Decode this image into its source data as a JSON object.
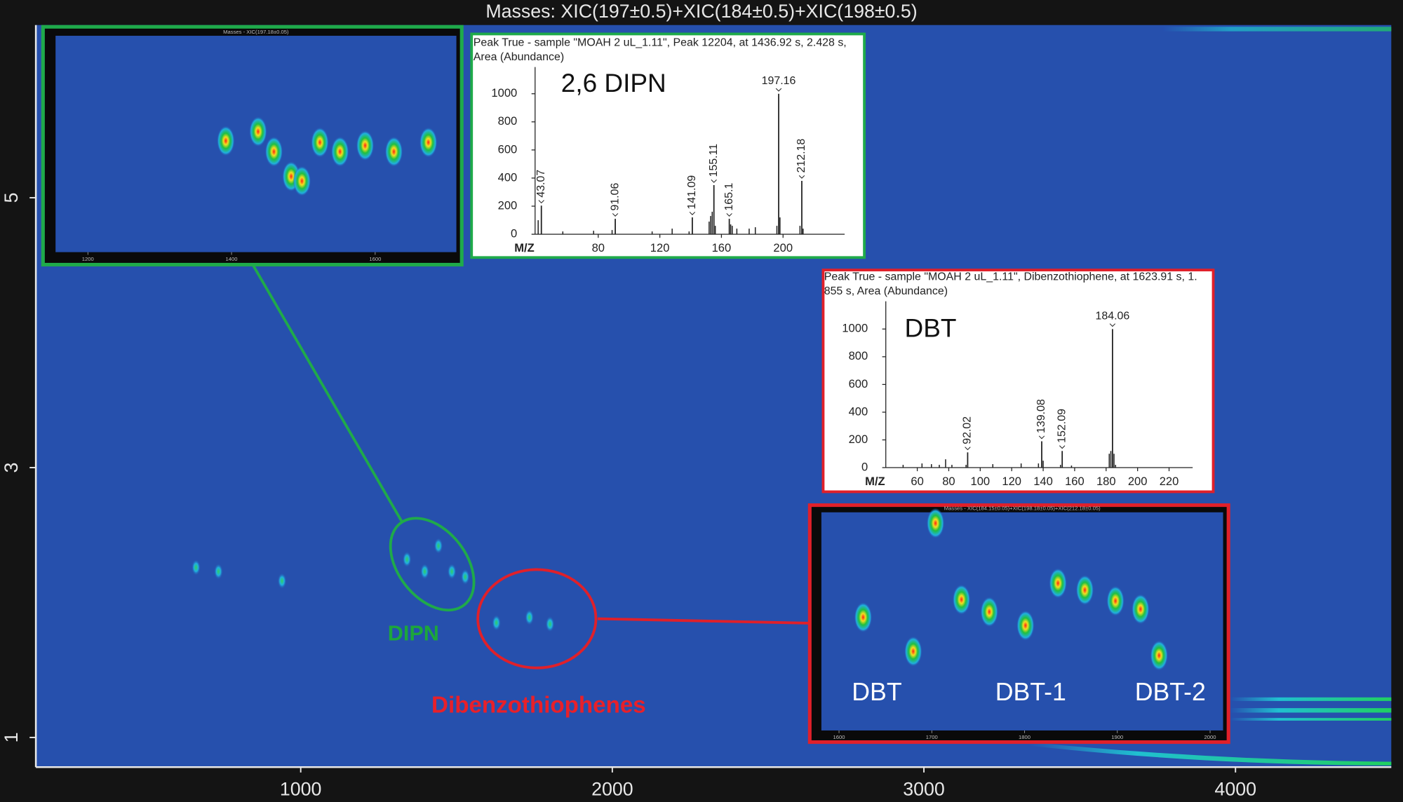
{
  "chart_data": [
    {
      "type": "contour",
      "title": "Masses:  XIC(197±0.5)+XIC(184±0.5)+XIC(198±0.5)",
      "xlim": [
        150,
        4500
      ],
      "xticks": [
        1000,
        2000,
        3000,
        4000
      ],
      "ylim": [
        0.78,
        6.28
      ],
      "yticks": [
        1,
        3,
        5
      ],
      "spots": {
        "x": [
          664,
          736,
          940,
          1341,
          1398,
          1442,
          1485,
          1528,
          1628,
          1734,
          1800
        ],
        "y": [
          2.26,
          2.23,
          2.16,
          2.32,
          2.23,
          2.42,
          2.23,
          2.19,
          1.85,
          1.89,
          1.84
        ]
      },
      "annotations": [
        {
          "text": "DIPN",
          "color": "#1ca63c"
        },
        {
          "text": "Dibenzothiophenes",
          "color": "#e8202a"
        }
      ]
    },
    {
      "type": "contour",
      "title": "Masses - XIC(197.18±0.05)",
      "xlim": [
        1155,
        1713
      ],
      "xticks": [
        1200,
        1400,
        1600
      ],
      "ylim": [
        1.6,
        3.0
      ],
      "spots": {
        "x": [
          1392,
          1437,
          1459,
          1483,
          1498,
          1523,
          1551,
          1586,
          1626,
          1674
        ],
        "y": [
          2.32,
          2.38,
          2.25,
          2.09,
          2.06,
          2.31,
          2.25,
          2.29,
          2.25,
          2.31
        ]
      }
    },
    {
      "type": "spectrum",
      "subtitle_lines": [
        "Peak True - sample \"MOAH 2 uL_1.11\", Peak 12204, at 1436.92 s, 2.428 s,",
        "Area (Abundance)"
      ],
      "compound": "2,6 DIPN",
      "xlabel": "M/Z",
      "color": "#1faa4a",
      "xlim": [
        39,
        240
      ],
      "xticks": [
        80,
        120,
        160,
        200
      ],
      "ylim": [
        0,
        1190
      ],
      "yticks": [
        0,
        200,
        400,
        600,
        800,
        1000
      ],
      "peaks": {
        "x": [
          43.07,
          91.06,
          141.09,
          155.11,
          165.1,
          197.16,
          212.18
        ],
        "values": [
          204,
          110,
          120,
          350,
          110,
          1000,
          380
        ]
      },
      "minor_peaks": {
        "x": [
          41,
          57,
          77,
          89,
          115,
          128,
          139,
          152,
          153,
          154,
          156,
          166,
          167,
          170,
          178,
          182,
          196,
          198,
          211,
          213
        ],
        "values": [
          100,
          20,
          25,
          30,
          20,
          40,
          20,
          90,
          130,
          160,
          60,
          70,
          60,
          40,
          40,
          50,
          60,
          120,
          60,
          40
        ]
      }
    },
    {
      "type": "spectrum",
      "subtitle_lines": [
        "Peak True - sample \"MOAH 2 uL_1.11\", Dibenzothiophene, at 1623.91 s, 1.",
        "855 s, Area (Abundance)"
      ],
      "compound": "DBT",
      "xlabel": "M/Z",
      "color": "#e0202a",
      "xlim": [
        40,
        235
      ],
      "xticks": [
        60,
        80,
        100,
        120,
        140,
        160,
        180,
        200,
        220
      ],
      "ylim": [
        0,
        1200
      ],
      "yticks": [
        0,
        200,
        400,
        600,
        800,
        1000
      ],
      "peaks": {
        "x": [
          92.02,
          139.08,
          152.09,
          184.06
        ],
        "values": [
          110,
          190,
          120,
          1000
        ]
      },
      "minor_peaks": {
        "x": [
          51,
          63,
          69,
          74,
          78,
          82,
          91,
          108,
          126,
          137,
          140,
          151,
          158,
          182,
          183,
          185,
          186
        ],
        "values": [
          20,
          30,
          25,
          20,
          60,
          20,
          20,
          25,
          30,
          30,
          50,
          20,
          15,
          100,
          120,
          100,
          20
        ]
      }
    },
    {
      "type": "contour",
      "title": "Masses - XIC(184.15±0.05)+XIC(198.18±0.05)+XIC(212.18±0.05)",
      "xlim": [
        1581,
        2014
      ],
      "xticks": [
        1600,
        1700,
        1800,
        1900,
        2000
      ],
      "ylim": [
        1.2,
        2.8
      ],
      "spots": {
        "x": [
          1626,
          1680,
          1732,
          1762,
          1801,
          1836,
          1865,
          1898,
          1925,
          1945,
          1704
        ],
        "y": [
          2.03,
          1.78,
          2.16,
          2.07,
          1.97,
          2.28,
          2.23,
          2.15,
          2.09,
          1.75,
          2.72
        ]
      },
      "annotations": [
        {
          "text": "DBT"
        },
        {
          "text": "DBT-1"
        },
        {
          "text": "DBT-2"
        }
      ]
    }
  ]
}
